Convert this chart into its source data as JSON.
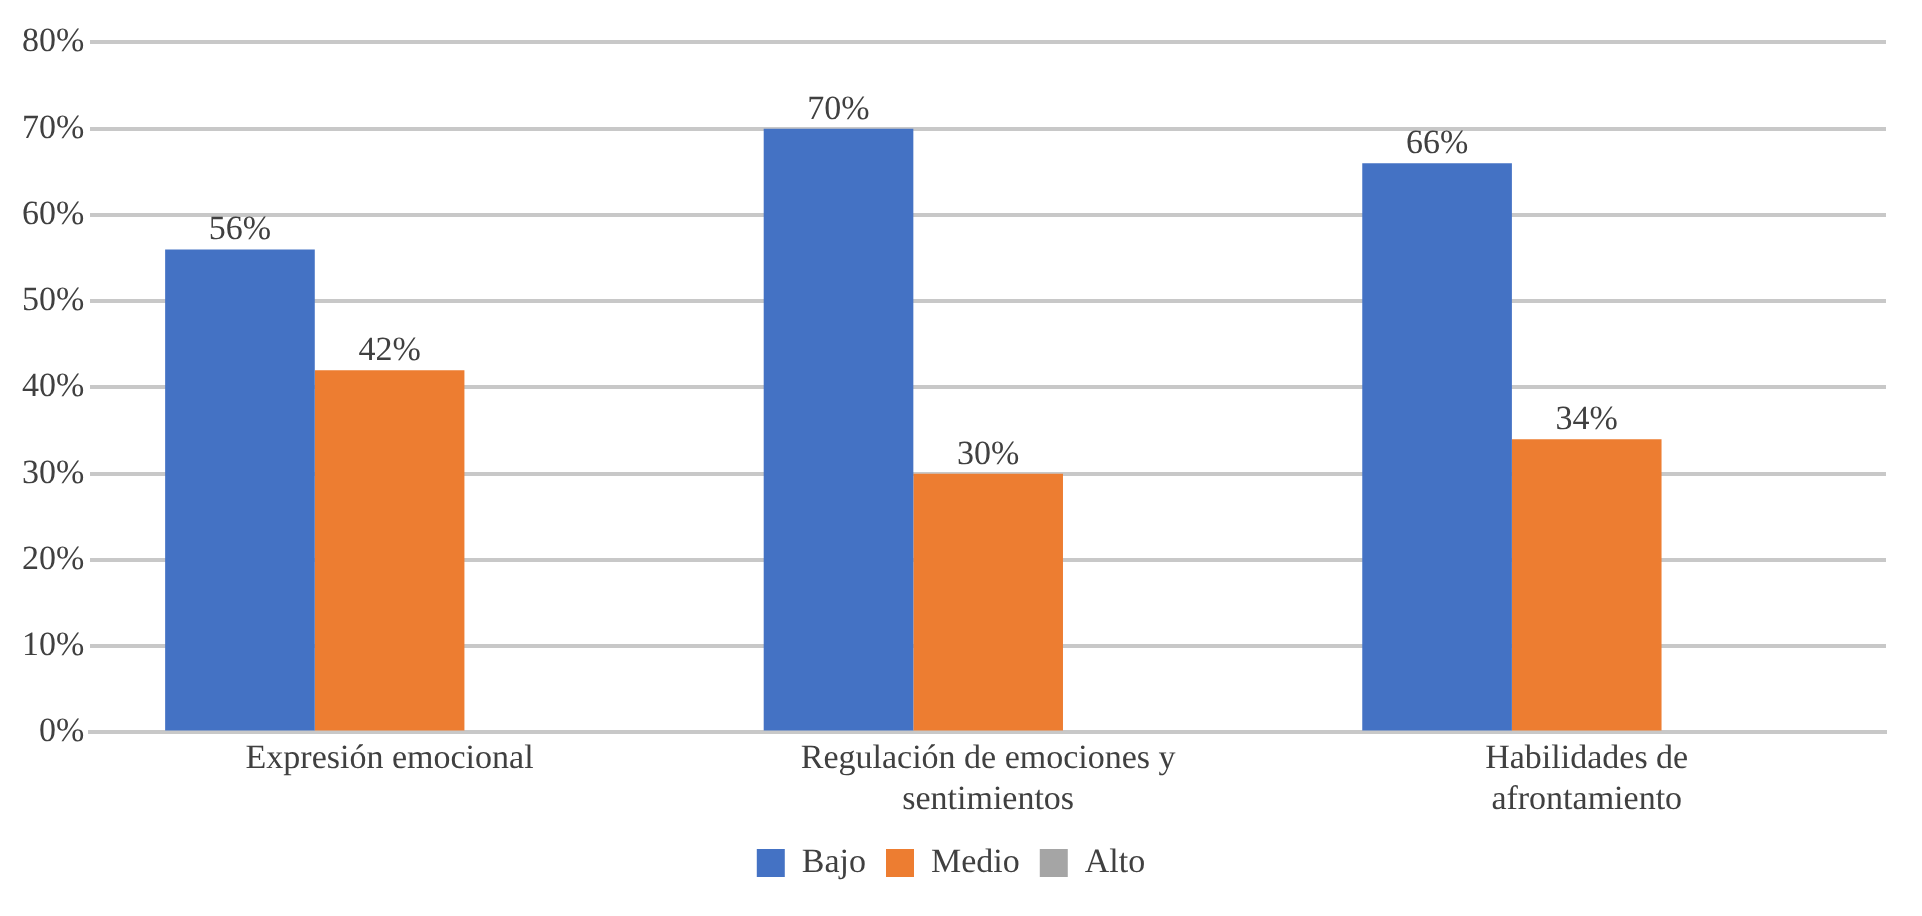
{
  "chart_data": {
    "type": "bar",
    "categories": [
      "Expresión emocional",
      "Regulación de emociones y sentimientos",
      "Habilidades de afrontamiento"
    ],
    "series": [
      {
        "name": "Bajo",
        "color": "#4472c4",
        "values": [
          56,
          70,
          66
        ],
        "value_labels": [
          "56%",
          "70%",
          "66%"
        ]
      },
      {
        "name": "Medio",
        "color": "#ed7d31",
        "values": [
          42,
          30,
          34
        ],
        "value_labels": [
          "42%",
          "30%",
          "34%"
        ]
      },
      {
        "name": "Alto",
        "color": "#a5a5a5",
        "values": [
          null,
          null,
          null
        ]
      }
    ],
    "ylim": [
      0,
      80
    ],
    "yticks": [
      {
        "value": 0,
        "label": "0%"
      },
      {
        "value": 10,
        "label": "10%"
      },
      {
        "value": 20,
        "label": "20%"
      },
      {
        "value": 30,
        "label": "30%"
      },
      {
        "value": 40,
        "label": "40%"
      },
      {
        "value": 50,
        "label": "50%"
      },
      {
        "value": 60,
        "label": "60%"
      },
      {
        "value": 70,
        "label": "70%"
      },
      {
        "value": 80,
        "label": "80%"
      }
    ],
    "grid": "y",
    "legend": "bottom"
  }
}
